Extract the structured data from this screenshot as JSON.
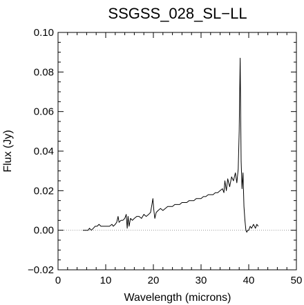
{
  "chart_data": {
    "type": "line",
    "title": "SSGSS_028_SL−LL",
    "xlabel": "Wavelength (microns)",
    "ylabel": "Flux (Jy)",
    "xlim": [
      0,
      50
    ],
    "ylim": [
      -0.02,
      0.1
    ],
    "x_ticks": [
      0,
      10,
      20,
      30,
      40,
      50
    ],
    "x_tick_labels": [
      "0",
      "10",
      "20",
      "30",
      "40",
      "50"
    ],
    "y_ticks": [
      -0.02,
      0.0,
      0.02,
      0.04,
      0.06,
      0.08,
      0.1
    ],
    "y_tick_labels": [
      "−0.02",
      "0.00",
      "0.02",
      "0.04",
      "0.06",
      "0.08",
      "0.10"
    ],
    "zero_line": {
      "y": 0.0,
      "style": "dotted",
      "color": "#999999"
    },
    "series": [
      {
        "color": "#000000",
        "x": [
          5.2,
          5.8,
          6.3,
          6.6,
          7.0,
          7.4,
          7.8,
          8.2,
          8.6,
          9.0,
          9.4,
          9.8,
          10.3,
          10.8,
          11.3,
          11.6,
          12.0,
          12.3,
          12.6,
          12.8,
          13.2,
          13.6,
          14.0,
          14.3,
          14.5,
          14.7,
          14.9,
          15.2,
          15.6,
          16.0,
          16.5,
          17.0,
          17.5,
          18.0,
          18.5,
          19.0,
          19.4,
          19.7,
          19.9,
          20.1,
          20.3,
          20.6,
          21.0,
          21.5,
          22.0,
          22.5,
          23.0,
          23.5,
          24.0,
          24.5,
          25.0,
          25.5,
          26.0,
          26.5,
          27.0,
          27.5,
          28.0,
          28.5,
          29.0,
          29.5,
          30.0,
          30.5,
          31.0,
          31.5,
          32.0,
          32.5,
          33.0,
          33.5,
          34.0,
          34.5,
          34.8,
          35.0,
          35.3,
          35.6,
          36.0,
          36.4,
          36.8,
          37.2,
          37.5,
          37.8,
          38.0,
          38.2,
          38.4,
          38.6,
          38.8,
          39.0,
          39.2,
          39.4,
          39.6,
          39.8,
          40.0,
          40.3,
          40.6,
          41.0,
          41.4,
          41.7,
          42.0
        ],
        "y": [
          0.0,
          0.0,
          0.0,
          0.001,
          0.0,
          0.001,
          0.002,
          0.002,
          0.003,
          0.002,
          0.002,
          0.002,
          0.002,
          0.002,
          0.003,
          0.002,
          0.003,
          0.004,
          0.007,
          0.004,
          0.005,
          0.005,
          0.006,
          0.008,
          0.001,
          0.007,
          0.002,
          0.006,
          0.005,
          0.006,
          0.007,
          0.007,
          0.006,
          0.008,
          0.007,
          0.008,
          0.009,
          0.013,
          0.016,
          0.01,
          0.006,
          0.009,
          0.01,
          0.011,
          0.01,
          0.011,
          0.012,
          0.012,
          0.012,
          0.013,
          0.013,
          0.013,
          0.014,
          0.014,
          0.014,
          0.015,
          0.015,
          0.015,
          0.016,
          0.016,
          0.016,
          0.017,
          0.017,
          0.018,
          0.018,
          0.018,
          0.019,
          0.019,
          0.02,
          0.021,
          0.019,
          0.025,
          0.02,
          0.026,
          0.022,
          0.027,
          0.025,
          0.029,
          0.024,
          0.031,
          0.05,
          0.087,
          0.035,
          0.021,
          0.029,
          0.012,
          0.005,
          0.0,
          -0.001,
          0.0,
          0.0,
          0.002,
          0.001,
          0.003,
          0.001,
          0.003,
          0.002
        ]
      }
    ]
  }
}
